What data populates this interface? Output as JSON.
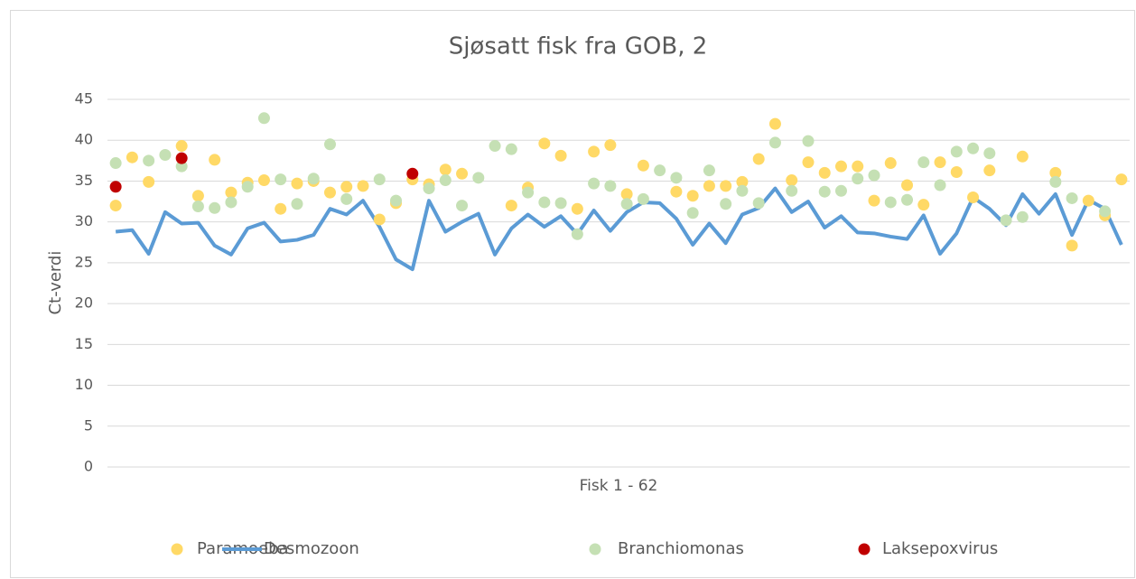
{
  "chart_data": {
    "type": "line",
    "title": "Sjøsatt fisk fra GOB, 2",
    "ylabel": "Ct-verdi",
    "xlabel": "Fisk 1 - 62",
    "ylim": [
      0,
      45
    ],
    "yticks": [
      0,
      5,
      10,
      15,
      20,
      25,
      30,
      35,
      40,
      45
    ],
    "grid": true,
    "legend": "bottom",
    "series": [
      {
        "name": "Paramoeba",
        "type": "scatter",
        "color": "#ffd966",
        "values": [
          32,
          37.9,
          34.9,
          null,
          39.3,
          33.2,
          37.6,
          33.6,
          34.8,
          35.1,
          31.6,
          34.7,
          35,
          33.6,
          34.3,
          34.4,
          30.3,
          32.3,
          35.2,
          34.6,
          36.4,
          35.9,
          null,
          null,
          32,
          34.2,
          39.6,
          38.1,
          31.6,
          38.6,
          39.4,
          33.4,
          36.9,
          null,
          33.7,
          33.2,
          34.4,
          34.4,
          34.9,
          37.7,
          42,
          35.1,
          37.3,
          36,
          36.8,
          36.8,
          32.6,
          37.2,
          34.5,
          32.1,
          37.3,
          36.1,
          33,
          36.3,
          null,
          38,
          null,
          36,
          27.1,
          32.6,
          30.8,
          35.2
        ]
      },
      {
        "name": "Desmozoon",
        "type": "line",
        "color": "#5b9bd5",
        "values": [
          28.8,
          29,
          26.1,
          31.2,
          29.8,
          29.9,
          27.1,
          26,
          29.2,
          29.9,
          27.6,
          27.8,
          28.4,
          31.6,
          30.9,
          32.6,
          29.4,
          25.4,
          24.2,
          32.6,
          28.8,
          30,
          31,
          26,
          29.2,
          30.9,
          29.4,
          30.7,
          28.5,
          31.4,
          28.9,
          31.2,
          32.4,
          32.3,
          30.4,
          27.2,
          29.8,
          27.4,
          30.9,
          31.7,
          34.1,
          31.2,
          32.5,
          29.3,
          30.7,
          28.7,
          28.6,
          28.2,
          27.9,
          30.8,
          26.1,
          28.6,
          33,
          31.6,
          29.6,
          33.4,
          31,
          33.4,
          28.4,
          32.7,
          31.6,
          27.2
        ]
      },
      {
        "name": "Branchiomonas",
        "type": "scatter",
        "color": "#c5e0b4",
        "values": [
          37.2,
          null,
          37.5,
          38.2,
          36.8,
          31.9,
          31.7,
          32.4,
          34.3,
          42.7,
          35.2,
          32.2,
          35.3,
          39.5,
          32.8,
          null,
          35.2,
          32.6,
          null,
          34.1,
          35.1,
          32,
          35.4,
          39.3,
          38.9,
          33.6,
          32.4,
          32.3,
          28.5,
          34.7,
          34.4,
          32.2,
          32.8,
          36.3,
          35.4,
          31.1,
          36.3,
          32.2,
          33.8,
          32.3,
          39.7,
          33.8,
          39.9,
          33.7,
          33.8,
          35.3,
          35.7,
          32.4,
          32.7,
          37.3,
          34.5,
          38.6,
          39,
          38.4,
          30.2,
          30.6,
          null,
          34.9,
          32.9,
          null,
          31.3,
          null
        ]
      },
      {
        "name": "Laksepoxvirus",
        "type": "scatter",
        "color": "#c00000",
        "values": [
          34.3,
          null,
          null,
          null,
          37.8,
          null,
          null,
          null,
          null,
          null,
          null,
          null,
          null,
          null,
          null,
          null,
          null,
          null,
          35.9,
          null,
          null,
          null,
          null,
          null,
          null,
          null,
          null,
          null,
          null,
          null,
          null,
          null,
          null,
          null,
          null,
          null,
          null,
          null,
          null,
          null,
          null,
          null,
          null,
          null,
          null,
          null,
          null,
          null,
          null,
          null,
          null,
          null,
          null,
          null,
          null,
          null,
          null,
          null,
          null,
          null,
          null,
          null
        ]
      }
    ]
  }
}
